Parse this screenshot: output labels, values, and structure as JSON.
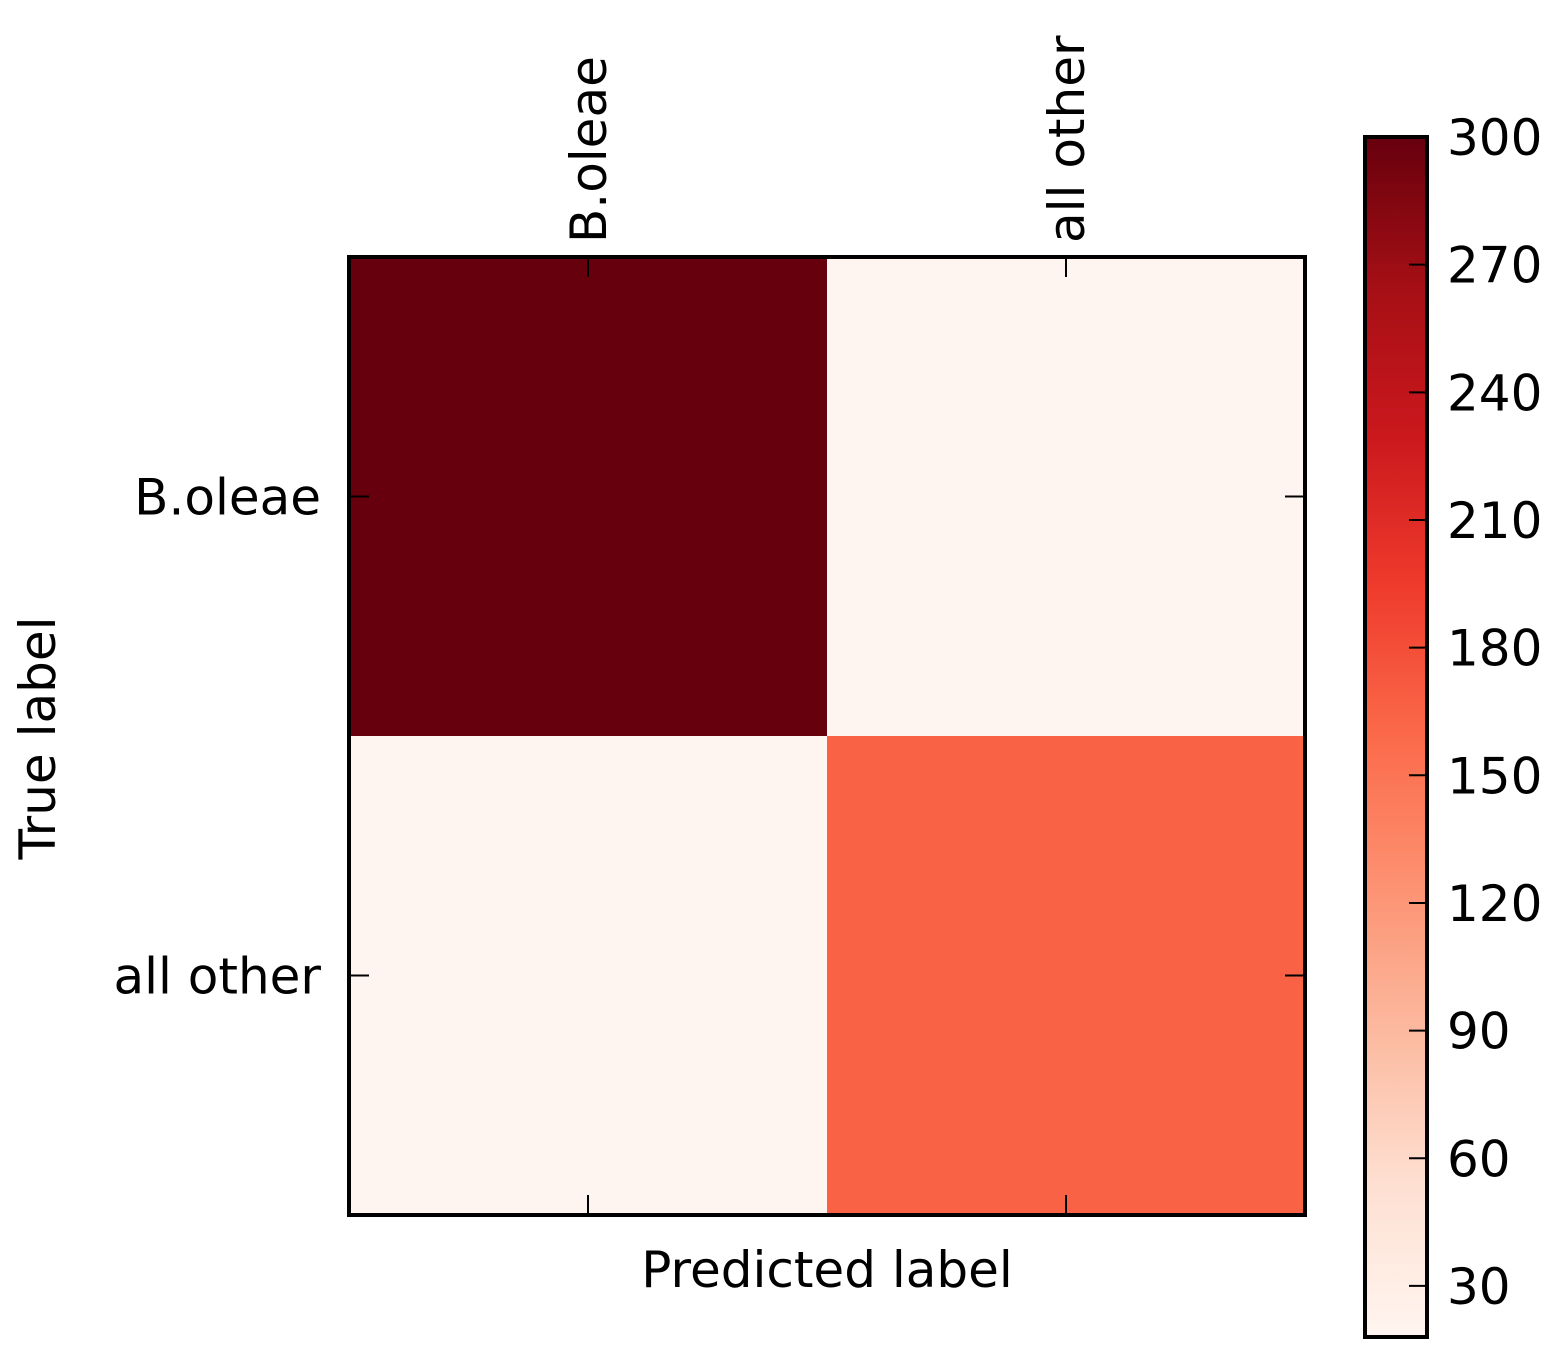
{
  "chart_data": {
    "type": "heatmap",
    "x_categories": [
      "B.oleae",
      "all other"
    ],
    "y_categories": [
      "B.oleae",
      "all other"
    ],
    "matrix": [
      [
        300,
        18
      ],
      [
        18,
        165
      ]
    ],
    "xlabel": "Predicted label",
    "ylabel": "True label",
    "x_tick_position": "top",
    "colormap": "Reds",
    "colorbar": {
      "range": [
        18,
        300
      ],
      "ticks": [
        30,
        60,
        90,
        120,
        150,
        180,
        210,
        240,
        270,
        300
      ],
      "placement": "right"
    },
    "grid": false,
    "colors": {
      "reds_stops": [
        "#fff5f0",
        "#fee0d2",
        "#fcbba1",
        "#fc9272",
        "#fb6a4a",
        "#ef3b2c",
        "#cb181d",
        "#a50f15",
        "#67000d"
      ]
    }
  }
}
